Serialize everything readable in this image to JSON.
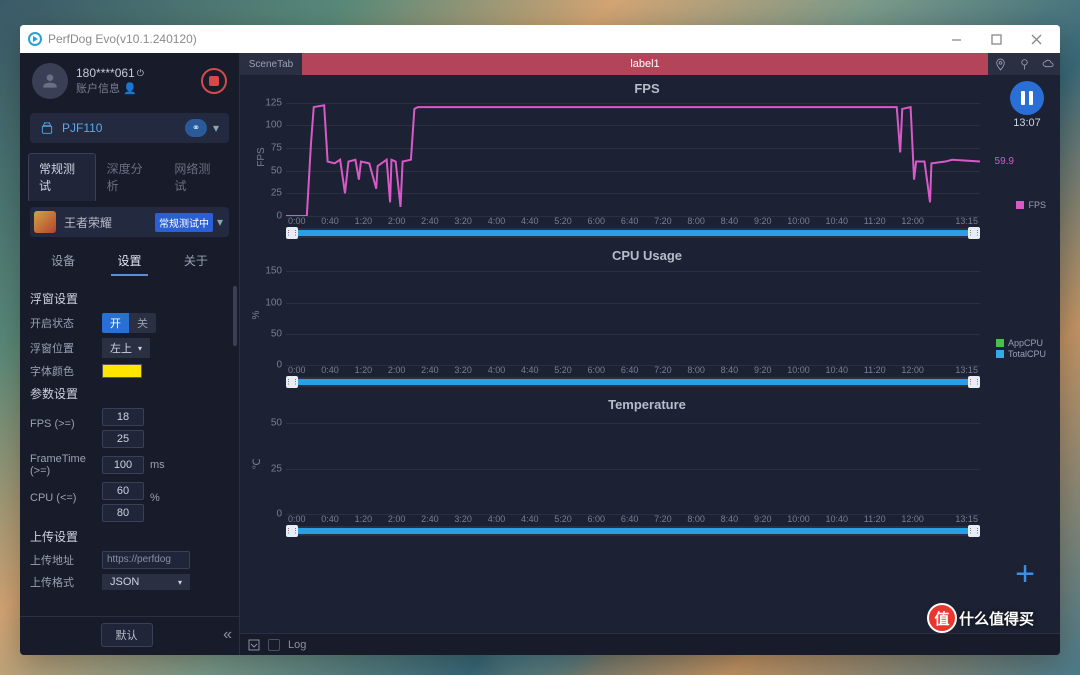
{
  "window": {
    "title": "PerfDog Evo(v10.1.240120)"
  },
  "user": {
    "id": "180****061",
    "account_label": "账户信息"
  },
  "device": {
    "name": "PJF110"
  },
  "mode_tabs": {
    "items": [
      "常规测试",
      "深度分析",
      "网络测试"
    ],
    "active": 0
  },
  "game": {
    "name": "王者荣耀",
    "badge": "常规测试中"
  },
  "nav_tabs": {
    "items": [
      "设备",
      "设置",
      "关于"
    ],
    "active": 1
  },
  "sections": {
    "float": {
      "title": "浮窗设置",
      "state_label": "开启状态",
      "state_on": "开",
      "state_off": "关",
      "pos_label": "浮窗位置",
      "pos_value": "左上",
      "color_label": "字体颜色",
      "color_value": "#ffe600"
    },
    "params": {
      "title": "参数设置",
      "fps_label": "FPS (>=)",
      "fps_v1": "18",
      "fps_v2": "25",
      "ft_label": "FrameTime (>=)",
      "ft_v": "100",
      "ft_unit": "ms",
      "cpu_label": "CPU (<=)",
      "cpu_v1": "60",
      "cpu_v2": "80",
      "cpu_unit": "%"
    },
    "upload": {
      "title": "上传设置",
      "addr_label": "上传地址",
      "addr_value": "https://perfdog",
      "fmt_label": "上传格式",
      "fmt_value": "JSON"
    }
  },
  "footer": {
    "default_btn": "默认"
  },
  "scene": {
    "tab": "SceneTab",
    "label": "label1"
  },
  "timer": "13:07",
  "time_axis": [
    "0:00",
    "0:40",
    "1:20",
    "2:00",
    "2:40",
    "3:20",
    "4:00",
    "4:40",
    "5:20",
    "6:00",
    "6:40",
    "7:20",
    "8:00",
    "8:40",
    "9:20",
    "10:00",
    "10:40",
    "11:20",
    "12:00",
    "",
    "13:15"
  ],
  "fps_chart": {
    "title": "FPS",
    "ylabel": "FPS",
    "yticks": [
      0,
      25,
      50,
      75,
      100,
      125
    ],
    "ylim": [
      0,
      130
    ],
    "color": "#d85ac8",
    "current_value": "59.9",
    "legend": [
      "FPS"
    ],
    "series": [
      [
        0,
        0
      ],
      [
        0.03,
        0
      ],
      [
        0.036,
        80
      ],
      [
        0.04,
        120
      ],
      [
        0.055,
        122
      ],
      [
        0.06,
        60
      ],
      [
        0.07,
        58
      ],
      [
        0.078,
        62
      ],
      [
        0.085,
        25
      ],
      [
        0.09,
        60
      ],
      [
        0.1,
        62
      ],
      [
        0.105,
        40
      ],
      [
        0.108,
        60
      ],
      [
        0.12,
        58
      ],
      [
        0.13,
        30
      ],
      [
        0.132,
        55
      ],
      [
        0.145,
        62
      ],
      [
        0.15,
        15
      ],
      [
        0.152,
        62
      ],
      [
        0.158,
        60
      ],
      [
        0.165,
        10
      ],
      [
        0.168,
        60
      ],
      [
        0.18,
        62
      ],
      [
        0.185,
        118
      ],
      [
        0.19,
        120
      ],
      [
        0.88,
        120
      ],
      [
        0.885,
        70
      ],
      [
        0.888,
        118
      ],
      [
        0.9,
        120
      ],
      [
        0.905,
        40
      ],
      [
        0.908,
        60
      ],
      [
        0.92,
        60
      ],
      [
        0.928,
        15
      ],
      [
        0.93,
        58
      ],
      [
        0.95,
        60
      ],
      [
        0.96,
        62
      ],
      [
        1.0,
        60
      ]
    ]
  },
  "cpu_chart": {
    "title": "CPU Usage",
    "ylabel": "%",
    "yticks": [
      0,
      50,
      100,
      150
    ],
    "ylim": [
      0,
      160
    ],
    "legend": [
      {
        "label": "AppCPU",
        "color": "#4ac24a"
      },
      {
        "label": "TotalCPU",
        "color": "#3aa8e6"
      }
    ]
  },
  "temp_chart": {
    "title": "Temperature",
    "ylabel": "℃",
    "yticks": [
      0,
      25,
      50
    ],
    "ylim": [
      0,
      55
    ]
  },
  "bottom": {
    "log": "Log"
  },
  "watermark": {
    "text": "什么值得买"
  }
}
